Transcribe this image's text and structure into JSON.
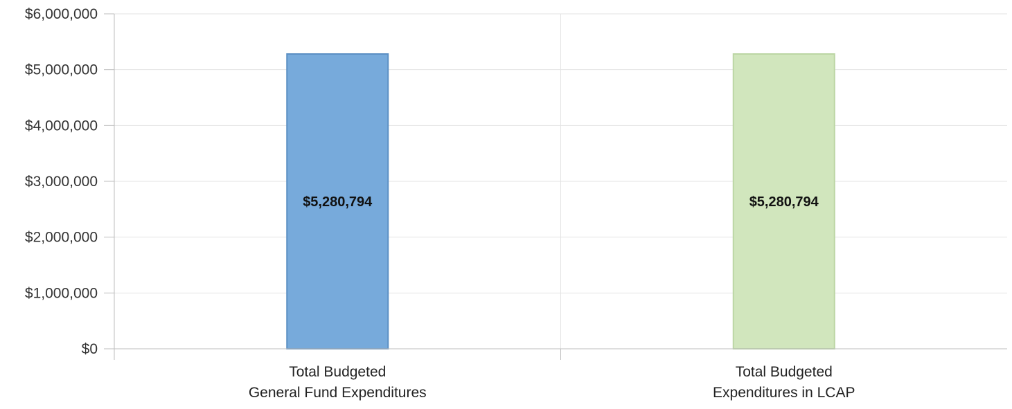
{
  "chart_data": {
    "type": "bar",
    "title": "",
    "xlabel": "",
    "ylabel": "",
    "categories": [
      [
        "Total Budgeted",
        "General Fund Expenditures"
      ],
      [
        "Total Budgeted",
        "Expenditures in LCAP"
      ]
    ],
    "values": [
      5280794,
      5280794
    ],
    "data_labels": [
      "$5,280,794",
      "$5,280,794"
    ],
    "bar_colors": [
      "#77aadb",
      "#d1e6bd"
    ],
    "bar_outline_colors": [
      "#5b8fc4",
      "#bcd6a4"
    ],
    "ylim": [
      0,
      6000000
    ],
    "yticks": [
      0,
      1000000,
      2000000,
      3000000,
      4000000,
      5000000,
      6000000
    ],
    "ytick_labels": [
      "$0",
      "$1,000,000",
      "$2,000,000",
      "$3,000,000",
      "$4,000,000",
      "$5,000,000",
      "$6,000,000"
    ],
    "grid": true,
    "legend": "none"
  }
}
